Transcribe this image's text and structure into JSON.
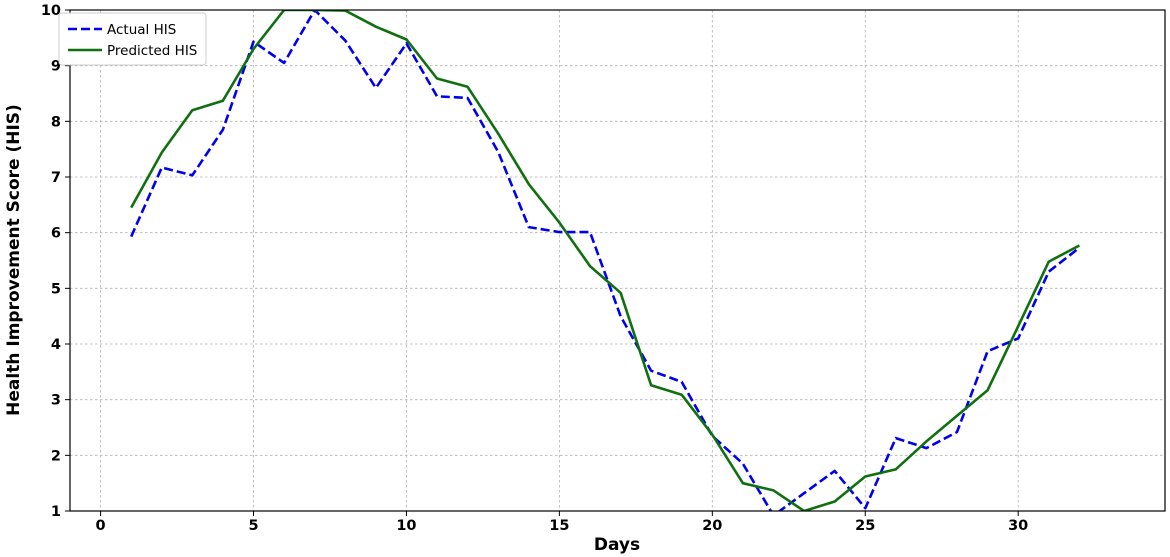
{
  "chart_data": {
    "type": "line",
    "title": "",
    "xlabel": "Days",
    "ylabel": "Health Improvement Score (HIS)",
    "xlim": [
      -1,
      34.8
    ],
    "ylim": [
      1,
      10
    ],
    "x_ticks": [
      0,
      5,
      10,
      15,
      20,
      25,
      30
    ],
    "y_ticks": [
      1,
      2,
      3,
      4,
      5,
      6,
      7,
      8,
      9,
      10
    ],
    "grid": true,
    "legend_position": "top-left",
    "x": [
      1,
      2,
      3,
      4,
      5,
      6,
      7,
      8,
      9,
      10,
      11,
      12,
      13,
      14,
      15,
      16,
      17,
      18,
      19,
      20,
      21,
      22,
      23,
      24,
      25,
      26,
      27,
      28,
      29,
      30,
      31,
      32
    ],
    "series": [
      {
        "name": "Actual HIS",
        "style": "dashed",
        "color": "#0000ee",
        "values": [
          5.93,
          7.17,
          7.03,
          7.85,
          9.43,
          9.05,
          10.0,
          9.45,
          8.6,
          9.4,
          8.45,
          8.42,
          7.45,
          6.1,
          6.01,
          6.01,
          4.5,
          3.52,
          3.32,
          2.35,
          1.85,
          0.92,
          1.32,
          1.72,
          1.05,
          2.31,
          2.13,
          2.42,
          3.87,
          4.1,
          5.3,
          5.73
        ]
      },
      {
        "name": "Predicted HIS",
        "style": "solid",
        "color": "#107010",
        "values": [
          6.45,
          7.44,
          8.2,
          8.37,
          9.3,
          10.0,
          10.0,
          9.99,
          9.7,
          9.47,
          8.77,
          8.62,
          7.78,
          6.87,
          6.18,
          5.4,
          4.92,
          3.26,
          3.09,
          2.37,
          1.5,
          1.37,
          1.0,
          1.17,
          1.62,
          1.75,
          2.25,
          2.71,
          3.17,
          4.32,
          5.48,
          5.77
        ]
      }
    ]
  }
}
